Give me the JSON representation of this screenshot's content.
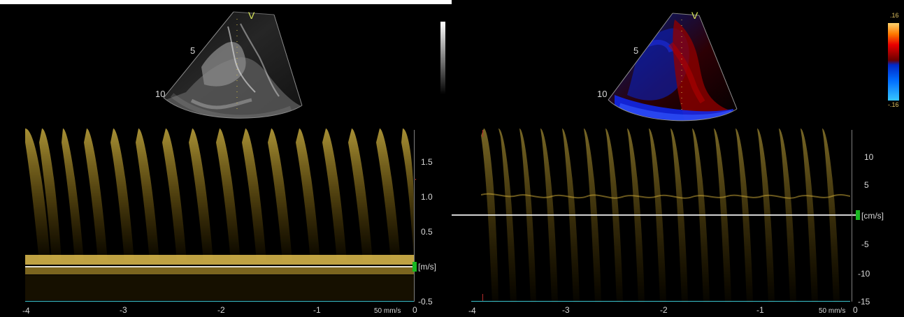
{
  "left": {
    "banner": "#ffffff",
    "v_marker": "V",
    "depth_labels": [
      "5",
      "10"
    ],
    "unit_label": "[m/s]",
    "axis_labels": [
      "1.5",
      "1.0",
      "0.5",
      "-0.5",
      "-4",
      "-3",
      "-2",
      "-1",
      "0"
    ],
    "speed_label": "50 mm/s",
    "colorbar": "grayscale"
  },
  "right": {
    "v_marker": "V",
    "depth_labels": [
      "5",
      "10"
    ],
    "unit_label": "[cm/s]",
    "axis_labels": [
      "10",
      "5",
      "-5",
      "-10",
      "-15",
      "-4",
      "-3",
      "-2",
      "-1",
      "0"
    ],
    "speed_label": "50 mm/s",
    "colorbar_labels": [
      ".16",
      "-.16"
    ]
  }
}
